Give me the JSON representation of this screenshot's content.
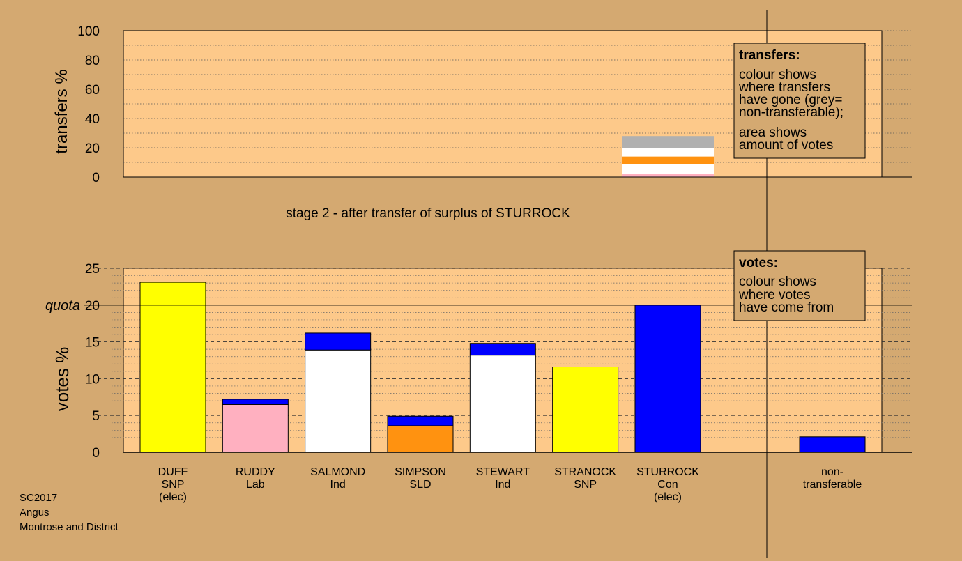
{
  "colors": {
    "background": "#d4a971",
    "plot_fill": "#fdc98a",
    "snp": "#ffff00",
    "lab": "#ffb0c0",
    "ind": "#ffffff",
    "sld": "#ff9210",
    "con": "#0000ff",
    "nontransferable": "#b0b0b0"
  },
  "stage_title": "stage 2 - after transfer of surplus of STURROCK",
  "meta": [
    "SC2017",
    "Angus",
    "Montrose and District"
  ],
  "chart_data": [
    {
      "type": "bar",
      "stacked": true,
      "ylabel": "transfers %",
      "ylim": [
        0,
        100
      ],
      "yticks": [
        "0",
        "20",
        "40",
        "60",
        "80",
        "100"
      ],
      "grid": "dotted",
      "transfer_bar": {
        "source": "STURROCK",
        "segments": [
          {
            "to": "RUDDY",
            "color": "#ffb0c0",
            "value": 2.0
          },
          {
            "to": "SALMOND",
            "color": "#ffffff",
            "value": 7.0
          },
          {
            "to": "SIMPSON",
            "color": "#ff9210",
            "value": 5.0
          },
          {
            "to": "STEWART",
            "color": "#ffffff",
            "value": 6.0
          },
          {
            "to": "non-transferable",
            "color": "#b0b0b0",
            "value": 8.0
          }
        ]
      },
      "legend": {
        "title": "transfers:",
        "lines": [
          "colour shows",
          "where transfers",
          "have gone (grey=",
          "non-transferable);",
          "area shows",
          "amount of votes"
        ],
        "placement": "top-right"
      }
    },
    {
      "type": "bar",
      "stacked": true,
      "ylabel": "votes %",
      "ylim": [
        0,
        25
      ],
      "yticks": [
        "0",
        "5",
        "10",
        "15",
        "20",
        "25"
      ],
      "quota": {
        "value": 20,
        "label": "quota"
      },
      "grid": "dotted",
      "candidates": [
        {
          "name": "DUFF",
          "party": "SNP",
          "note": "(elec)",
          "segments": [
            {
              "color": "#ffff00",
              "value": 23.1
            }
          ]
        },
        {
          "name": "RUDDY",
          "party": "Lab",
          "note": "",
          "segments": [
            {
              "color": "#ffb0c0",
              "value": 6.5
            },
            {
              "color": "#0000ff",
              "value": 0.7
            }
          ]
        },
        {
          "name": "SALMOND",
          "party": "Ind",
          "note": "",
          "segments": [
            {
              "color": "#ffffff",
              "value": 13.9
            },
            {
              "color": "#0000ff",
              "value": 2.3
            }
          ]
        },
        {
          "name": "SIMPSON",
          "party": "SLD",
          "note": "",
          "segments": [
            {
              "color": "#ff9210",
              "value": 3.6
            },
            {
              "color": "#0000ff",
              "value": 1.3
            }
          ]
        },
        {
          "name": "STEWART",
          "party": "Ind",
          "note": "",
          "segments": [
            {
              "color": "#ffffff",
              "value": 13.2
            },
            {
              "color": "#0000ff",
              "value": 1.6
            }
          ]
        },
        {
          "name": "STRANOCK",
          "party": "SNP",
          "note": "",
          "segments": [
            {
              "color": "#ffff00",
              "value": 11.6
            }
          ]
        },
        {
          "name": "STURROCK",
          "party": "Con",
          "note": "(elec)",
          "segments": [
            {
              "color": "#0000ff",
              "value": 20.0
            }
          ]
        }
      ],
      "nontransferable": {
        "label_lines": [
          "non-",
          "transferable"
        ],
        "segments": [
          {
            "color": "#0000ff",
            "value": 2.1
          }
        ]
      },
      "legend": {
        "title": "votes:",
        "lines": [
          "colour shows",
          "where votes",
          "have come from"
        ],
        "placement": "top-right"
      }
    }
  ]
}
